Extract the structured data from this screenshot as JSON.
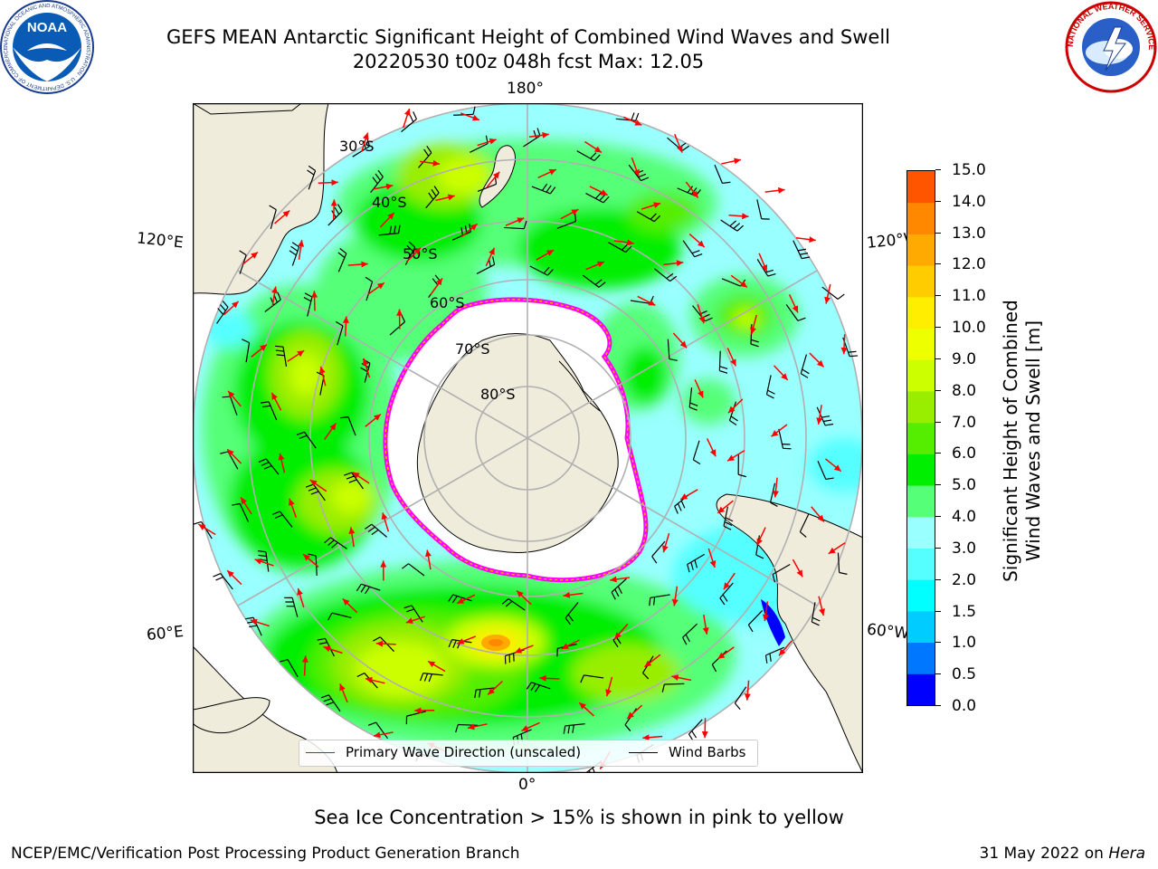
{
  "title": {
    "line1": "GEFS MEAN Antarctic Significant Height of Combined Wind Waves and Swell",
    "line2": "20220530 t00z 048h fcst   Max: 12.05"
  },
  "logos": {
    "noaa_text": "NOAA",
    "noaa_ring_text": "NATIONAL OCEANIC AND ATMOSPHERIC ADMINISTRATION · U.S. DEPARTMENT OF COMMERCE",
    "nws_ring_text": "NATIONAL WEATHER SERVICE"
  },
  "map": {
    "projection": "south polar stereographic",
    "longitude_labels": {
      "top": "180°",
      "bottom": "0°",
      "upper_left": "120°E",
      "lower_left": "60°E",
      "upper_right": "120°W",
      "lower_right": "60°W"
    },
    "latitude_labels": [
      "30°S",
      "40°S",
      "50°S",
      "60°S",
      "70°S",
      "80°S"
    ],
    "land_color": "#efecdc",
    "ice_color": "#ffffff",
    "ice_edge_colors": [
      "#ff00ff",
      "#ff9900",
      "#ffee00"
    ],
    "max_value": 12.05
  },
  "legend": {
    "wave_direction": "Primary Wave Direction (unscaled)",
    "wind_barbs": "Wind Barbs",
    "wave_color": "#ff0000",
    "barb_color": "#000000"
  },
  "colorbar": {
    "label_line1": "Significant Height of Combined",
    "label_line2": "Wind Waves and Swell [m]",
    "ticks": [
      "0.0",
      "0.5",
      "1.0",
      "1.5",
      "2.0",
      "3.0",
      "4.0",
      "5.0",
      "6.0",
      "7.0",
      "8.0",
      "9.0",
      "10.0",
      "11.0",
      "12.0",
      "13.0",
      "14.0",
      "15.0"
    ],
    "colors": [
      "#0000ff",
      "#0077ff",
      "#00ccff",
      "#00ffff",
      "#55ffff",
      "#99ffff",
      "#55ff77",
      "#00ee00",
      "#55ee00",
      "#99ee00",
      "#ccff00",
      "#eeff00",
      "#ffee00",
      "#ffcc00",
      "#ffaa00",
      "#ff8800",
      "#ff5500",
      "#ff2200",
      "#ff0000"
    ]
  },
  "note": "Sea Ice Concentration > 15% is shown in pink to yellow",
  "footer": {
    "left": "NCEP/EMC/Verification Post Processing Product Generation Branch",
    "right_prefix": "31 May 2022 on",
    "right_machine": "Hera"
  }
}
